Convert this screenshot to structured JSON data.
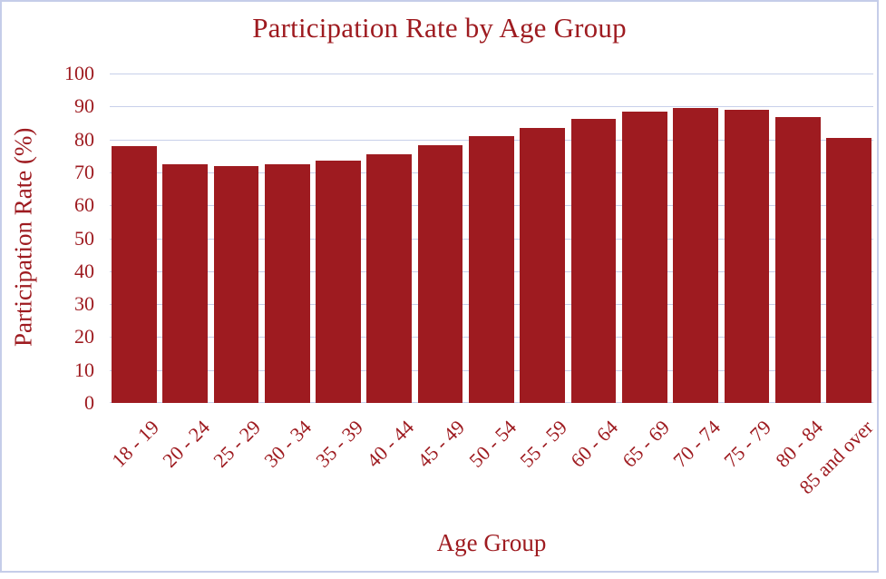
{
  "colors": {
    "bar": "#9e1b20",
    "text": "#9e1b20",
    "gridline": "#c8d0ea",
    "frame_border": "#c5cde9",
    "background": "#ffffff"
  },
  "chart_data": {
    "type": "bar",
    "title": "Participation Rate by Age Group",
    "xlabel": "Age Group",
    "ylabel": "Participation Rate (%)",
    "categories": [
      "18 - 19",
      "20 - 24",
      "25 - 29",
      "30 - 34",
      "35 - 39",
      "40 - 44",
      "45 - 49",
      "50 - 54",
      "55 - 59",
      "60 - 64",
      "65 - 69",
      "70 - 74",
      "75 - 79",
      "80 - 84",
      "85 and over"
    ],
    "values": [
      78.1,
      72.4,
      71.9,
      72.4,
      73.5,
      75.4,
      78.2,
      80.9,
      83.6,
      86.2,
      88.3,
      89.6,
      89.1,
      86.7,
      80.4
    ],
    "ylim": [
      0,
      100
    ],
    "yticks": [
      0,
      10,
      20,
      30,
      40,
      50,
      60,
      70,
      80,
      90,
      100
    ],
    "grid": "horizontal",
    "legend": "none"
  }
}
